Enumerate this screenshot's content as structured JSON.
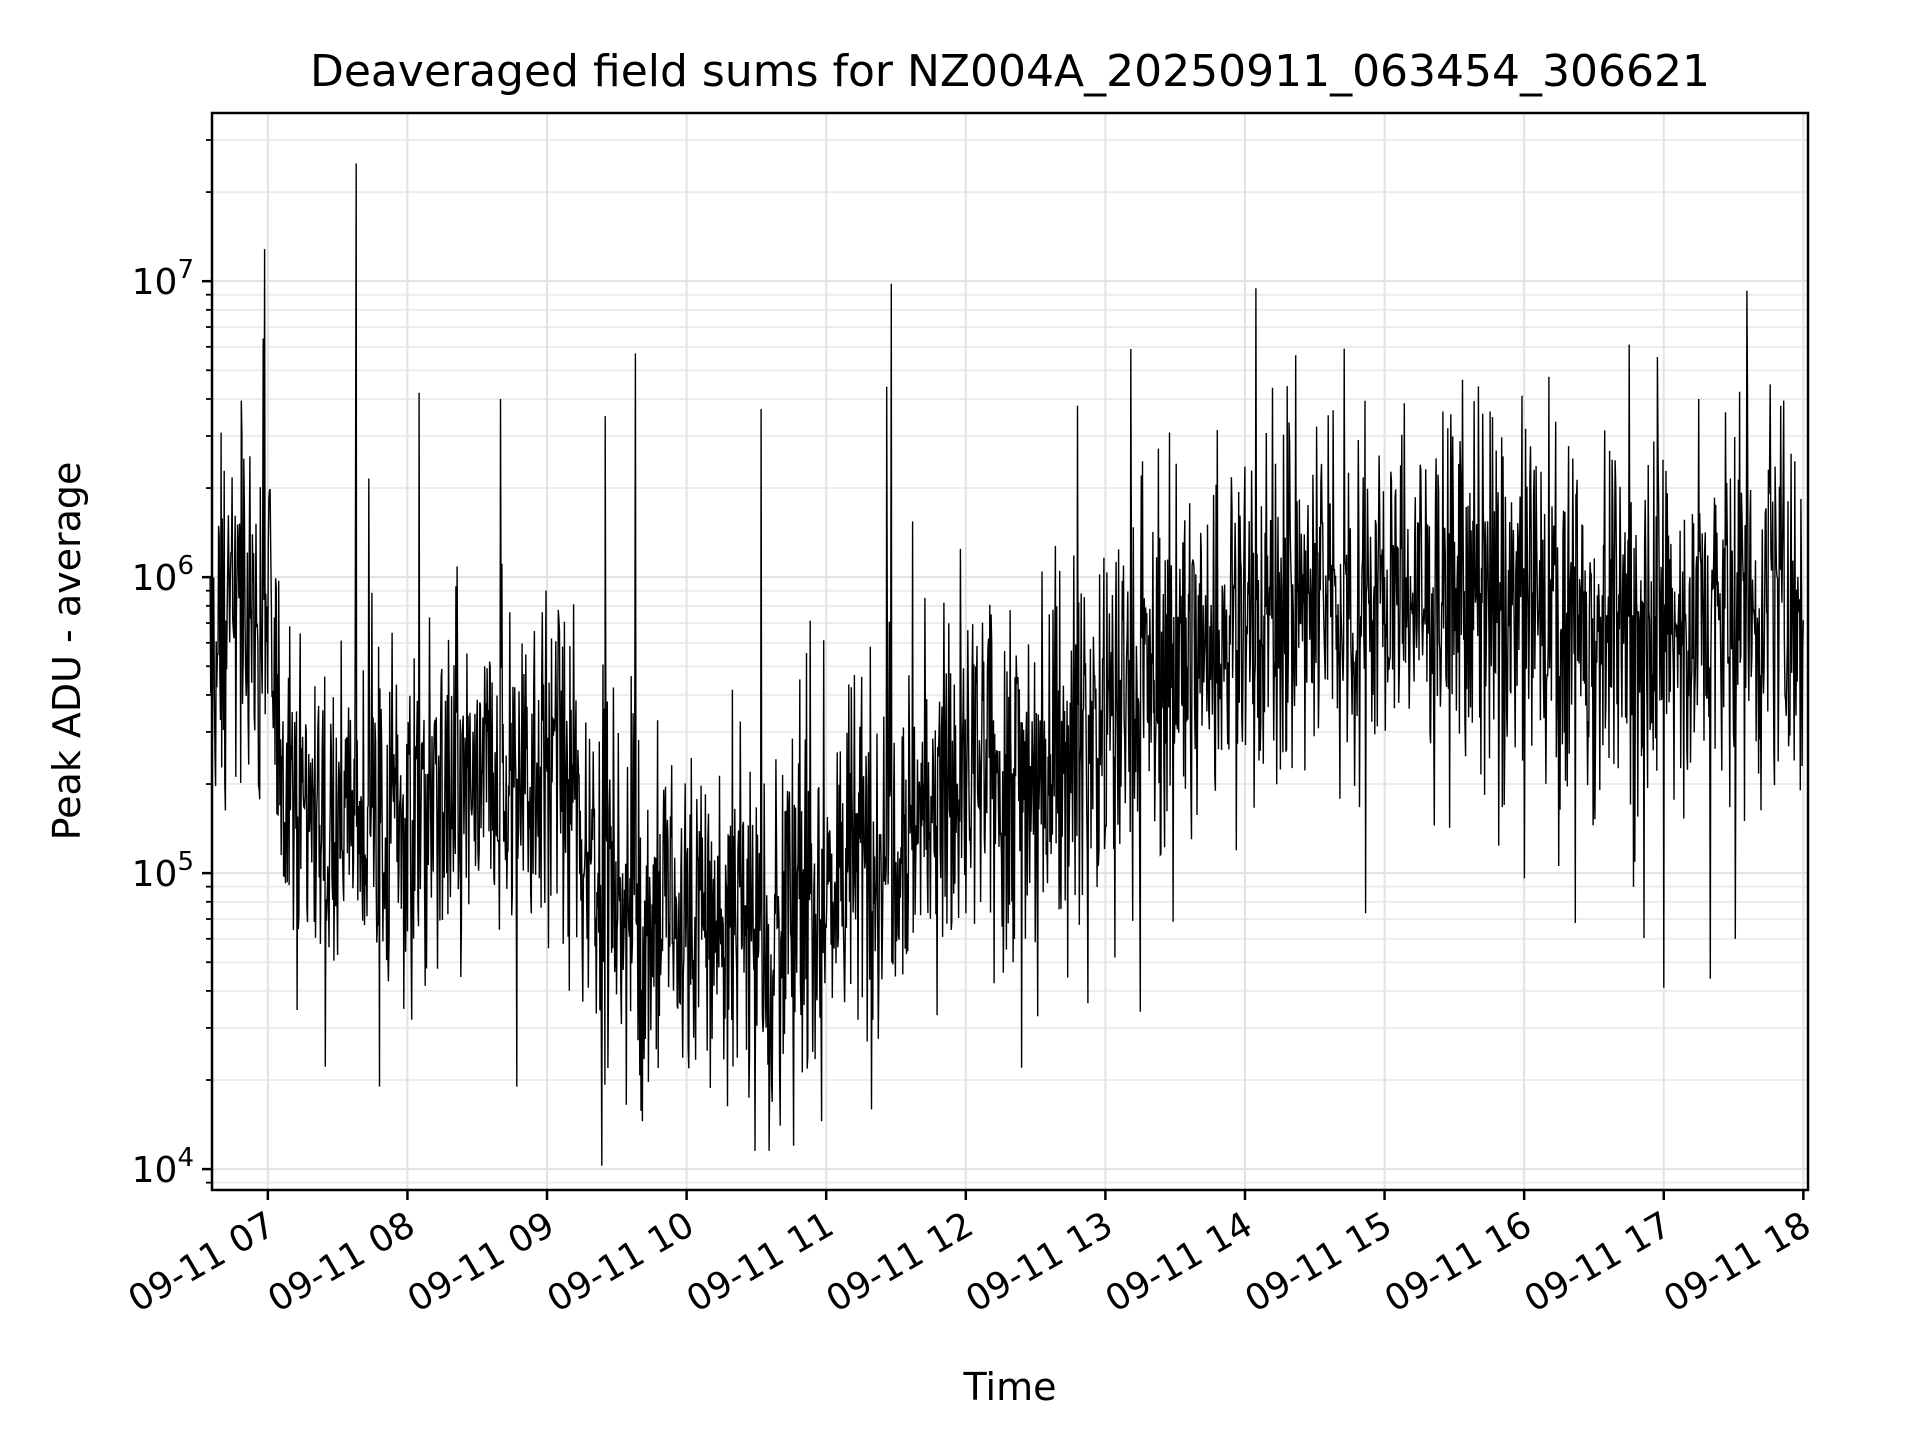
{
  "chart_data": {
    "type": "line",
    "title": "Deaveraged field sums for NZ004A_20250911_063454_306621",
    "xlabel": "Time",
    "ylabel": "Peak ADU - average",
    "yscale": "log",
    "grid": true,
    "line_color": "#000000",
    "x_start": "2025-09-11T06:34:54",
    "x_end": "2025-09-11T18:00:00",
    "xlim": [
      "2025-09-11T06:36",
      "2025-09-11T18:02"
    ],
    "ylim": [
      8500,
      37000000
    ],
    "xticks": [
      {
        "value": "2025-09-11T07:00",
        "label": "09-11 07"
      },
      {
        "value": "2025-09-11T08:00",
        "label": "09-11 08"
      },
      {
        "value": "2025-09-11T09:00",
        "label": "09-11 09"
      },
      {
        "value": "2025-09-11T10:00",
        "label": "09-11 10"
      },
      {
        "value": "2025-09-11T11:00",
        "label": "09-11 11"
      },
      {
        "value": "2025-09-11T12:00",
        "label": "09-11 12"
      },
      {
        "value": "2025-09-11T13:00",
        "label": "09-11 13"
      },
      {
        "value": "2025-09-11T14:00",
        "label": "09-11 14"
      },
      {
        "value": "2025-09-11T15:00",
        "label": "09-11 15"
      },
      {
        "value": "2025-09-11T16:00",
        "label": "09-11 16"
      },
      {
        "value": "2025-09-11T17:00",
        "label": "09-11 17"
      },
      {
        "value": "2025-09-11T18:00",
        "label": "09-11 18"
      }
    ],
    "yticks": [
      {
        "value": 10000,
        "base": "10",
        "exp": "4"
      },
      {
        "value": 100000,
        "base": "10",
        "exp": "5"
      },
      {
        "value": 1000000,
        "base": "10",
        "exp": "6"
      },
      {
        "value": 10000000,
        "base": "10",
        "exp": "7"
      }
    ],
    "series": [
      {
        "trend": [
          [
            "2025-09-11T06:35",
            500000
          ],
          [
            "2025-09-11T06:45",
            850000
          ],
          [
            "2025-09-11T07:00",
            700000
          ],
          [
            "2025-09-11T07:06",
            250000
          ],
          [
            "2025-09-11T07:20",
            160000
          ],
          [
            "2025-09-11T08:00",
            150000
          ],
          [
            "2025-09-11T08:40",
            200000
          ],
          [
            "2025-09-11T09:00",
            260000
          ],
          [
            "2025-09-11T09:20",
            120000
          ],
          [
            "2025-09-11T09:40",
            70000
          ],
          [
            "2025-09-11T10:00",
            70000
          ],
          [
            "2025-09-11T10:40",
            65000
          ],
          [
            "2025-09-11T11:00",
            90000
          ],
          [
            "2025-09-11T11:30",
            150000
          ],
          [
            "2025-09-11T12:00",
            200000
          ],
          [
            "2025-09-11T12:30",
            230000
          ],
          [
            "2025-09-11T13:00",
            330000
          ],
          [
            "2025-09-11T13:30",
            500000
          ],
          [
            "2025-09-11T14:00",
            750000
          ],
          [
            "2025-09-11T15:00",
            900000
          ],
          [
            "2025-09-11T16:00",
            780000
          ],
          [
            "2025-09-11T16:30",
            700000
          ],
          [
            "2025-09-11T17:00",
            650000
          ],
          [
            "2025-09-11T17:30",
            750000
          ],
          [
            "2025-09-11T18:00",
            850000
          ]
        ],
        "peaks": [
          [
            "2025-09-11T06:58",
            6400000
          ],
          [
            "2025-09-11T07:38",
            25000000
          ],
          [
            "2025-09-11T08:05",
            4200000
          ],
          [
            "2025-09-11T08:40",
            4000000
          ],
          [
            "2025-09-11T09:25",
            3500000
          ],
          [
            "2025-09-11T09:38",
            5700000
          ],
          [
            "2025-09-11T10:32",
            3700000
          ],
          [
            "2025-09-11T11:26",
            4400000
          ],
          [
            "2025-09-11T11:28",
            9800000
          ],
          [
            "2025-09-11T12:48",
            3800000
          ],
          [
            "2025-09-11T17:15",
            4000000
          ],
          [
            "2025-09-11T17:36",
            4200000
          ]
        ],
        "troughs": [
          [
            "2025-09-11T09:41",
            14500
          ],
          [
            "2025-09-11T10:46",
            12000
          ],
          [
            "2025-09-11T10:58",
            14500
          ],
          [
            "2025-09-11T07:48",
            19000
          ],
          [
            "2025-09-11T08:47",
            19000
          ],
          [
            "2025-09-11T12:24",
            22000
          ],
          [
            "2025-09-11T13:15",
            34000
          ],
          [
            "2025-09-11T17:00",
            41000
          ],
          [
            "2025-09-11T17:20",
            44000
          ]
        ]
      }
    ]
  }
}
